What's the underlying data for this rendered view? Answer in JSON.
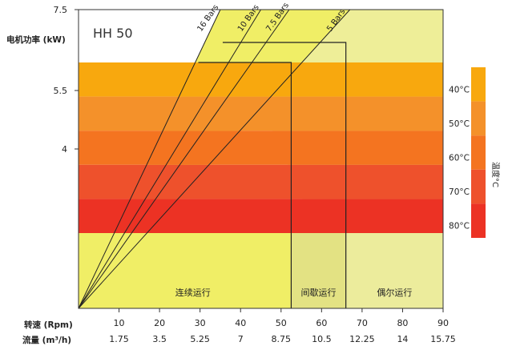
{
  "chart_data": {
    "type": "area",
    "title": "HH 50",
    "ylabel": "电机功率 (kW)",
    "y_ticks": [
      {
        "value": 7.5,
        "label": "7.5"
      },
      {
        "value": 5.5,
        "label": "5.5"
      },
      {
        "value": 4,
        "label": "4"
      }
    ],
    "speed_label": "转速 (Rpm)",
    "flow_label": "流量 (m³/h)",
    "xlim": [
      0,
      90
    ],
    "x_ticks": [
      {
        "rpm": 10,
        "flow": "1.75"
      },
      {
        "rpm": 20,
        "flow": "3.5"
      },
      {
        "rpm": 30,
        "flow": "5.25"
      },
      {
        "rpm": 40,
        "flow": "7"
      },
      {
        "rpm": 50,
        "flow": "8.75"
      },
      {
        "rpm": 60,
        "flow": "10.5"
      },
      {
        "rpm": 70,
        "flow": "12.25"
      },
      {
        "rpm": 80,
        "flow": "14"
      },
      {
        "rpm": 90,
        "flow": "15.75"
      }
    ],
    "pressure_lines": [
      {
        "name": "16 Bars",
        "x_at_top": 35
      },
      {
        "name": "10 Bars",
        "x_at_top": 45
      },
      {
        "name": "7.5 Bars",
        "x_at_top": 52
      },
      {
        "name": "5 Bars",
        "x_at_top": 67
      }
    ],
    "zones": [
      {
        "name": "连续运行",
        "x_from": 0,
        "x_to": 52.5
      },
      {
        "name": "间歇运行",
        "x_from": 52.5,
        "x_to": 66
      },
      {
        "name": "偶尔运行",
        "x_from": 66,
        "x_to": 90
      }
    ],
    "envelope_levels": [
      6.2,
      6.75
    ],
    "temperature_bands": [
      {
        "label": "40°C",
        "color": "#f8a80e"
      },
      {
        "label": "50°C",
        "color": "#f4912a"
      },
      {
        "label": "60°C",
        "color": "#f47420"
      },
      {
        "label": "70°C",
        "color": "#ee512c"
      },
      {
        "label": "80°C",
        "color": "#ec3224"
      }
    ],
    "temperature_axis_label": "温度°C"
  },
  "colors": {
    "light_zone": "#eeee98",
    "curve_fill": "#f0ee66",
    "intermittent_fill": "#e3e283",
    "occasional_fill": "#ecec9c"
  }
}
